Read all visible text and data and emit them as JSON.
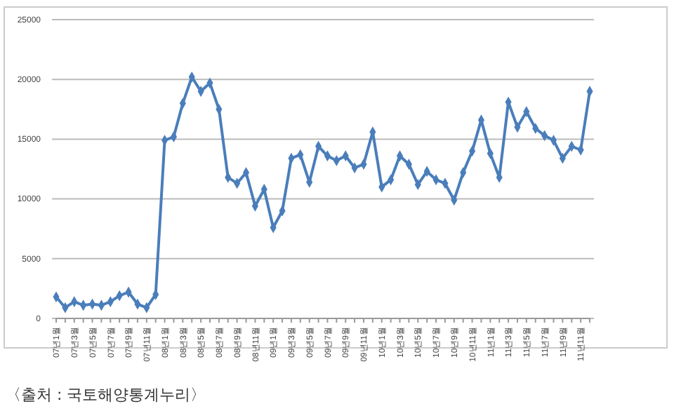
{
  "chart_data": {
    "type": "line",
    "categories": [
      "07년1월",
      null,
      "07년3월",
      null,
      "07년5월",
      null,
      "07년7월",
      null,
      "07년9월",
      null,
      "07년11월",
      null,
      "08년1월",
      null,
      "08년3월",
      null,
      "08년5월",
      null,
      "08년7월",
      null,
      "08년9월",
      null,
      "08년11월",
      null,
      "09년1월",
      null,
      "09년3월",
      null,
      "09년5월",
      null,
      "09년7월",
      null,
      "09년9월",
      null,
      "09년11월",
      null,
      "10년1월",
      null,
      "10년3월",
      null,
      "10년5월",
      null,
      "10년7월",
      null,
      "10년9월",
      null,
      "10년11월",
      null,
      "11년1월",
      null,
      "11년3월",
      null,
      "11년5월",
      null,
      "11년7월",
      null,
      "11년9월",
      null,
      "11년11월",
      null
    ],
    "series": [
      {
        "color": "#4a7ebb",
        "values": [
          1800,
          900,
          1400,
          1100,
          1200,
          1100,
          1400,
          1900,
          2200,
          1200,
          900,
          2000,
          14900,
          15200,
          18000,
          20200,
          19000,
          19700,
          17500,
          11800,
          11300,
          12200,
          9400,
          10800,
          7600,
          9000,
          13400,
          13700,
          11400,
          14400,
          13600,
          13200,
          13600,
          12600,
          12900,
          15600,
          11000,
          11600,
          13600,
          12900,
          11200,
          12300,
          11600,
          11300,
          9900,
          12200,
          14000,
          16600,
          13800,
          11800,
          18100,
          16000,
          17300,
          15900,
          15300,
          14900,
          13400,
          14400,
          14100,
          19000
        ]
      }
    ],
    "ylim": [
      0,
      25000
    ],
    "yticks": [
      0,
      5000,
      10000,
      15000,
      20000,
      25000
    ],
    "grid": "y",
    "marker": "diamond",
    "line_style": "solid",
    "annotations": [
      "〈출처 : 국토해양통계누리〉"
    ]
  }
}
